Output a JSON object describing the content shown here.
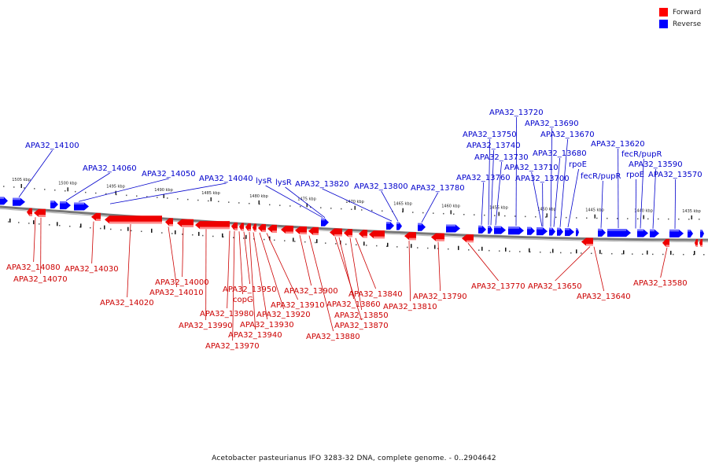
{
  "legend": {
    "forward_label": "Forward",
    "reverse_label": "Reverse",
    "forward_color": "#ff0000",
    "reverse_color": "#0000ff"
  },
  "caption": "Acetobacter pasteurianus IFO 3283-32 DNA, complete genome. - 0..2904642",
  "axis": {
    "ticks": [
      "1505 kbp",
      "1500 kbp",
      "1495 kbp",
      "1490 kbp",
      "1485 kbp",
      "1480 kbp",
      "1475 kbp",
      "1470 kbp",
      "1465 kbp",
      "1460 kbp",
      "1455 kbp",
      "1450 kbp",
      "1445 kbp",
      "1440 kbp",
      "1435 kbp"
    ]
  },
  "reverse_labels": [
    "APA32_14100",
    "APA32_14060",
    "APA32_14050",
    "APA32_14040",
    "lysR",
    "lysR",
    "APA32_13820",
    "APA32_13800",
    "APA32_13780",
    "APA32_13760",
    "APA32_13750",
    "APA32_13740",
    "APA32_13730",
    "APA32_13720",
    "APA32_13710",
    "APA32_13700",
    "APA32_13690",
    "APA32_13680",
    "APA32_13670",
    "rpoE",
    "fecR/pupR",
    "APA32_13620",
    "fecR/pupR",
    "rpoE",
    "APA32_13590",
    "APA32_13570"
  ],
  "forward_labels": [
    "APA32_14080",
    "APA32_14070",
    "APA32_14030",
    "APA32_14020",
    "APA32_14010",
    "APA32_14000",
    "APA32_13990",
    "APA32_13980",
    "APA32_13970",
    "copG",
    "APA32_13950",
    "APA32_13940",
    "APA32_13930",
    "APA32_13920",
    "APA32_13910",
    "APA32_13900",
    "APA32_13880",
    "APA32_13870",
    "APA32_13860",
    "APA32_13850",
    "APA32_13840",
    "APA32_13810",
    "APA32_13790",
    "APA32_13770",
    "APA32_13650",
    "APA32_13640",
    "APA32_13580"
  ]
}
